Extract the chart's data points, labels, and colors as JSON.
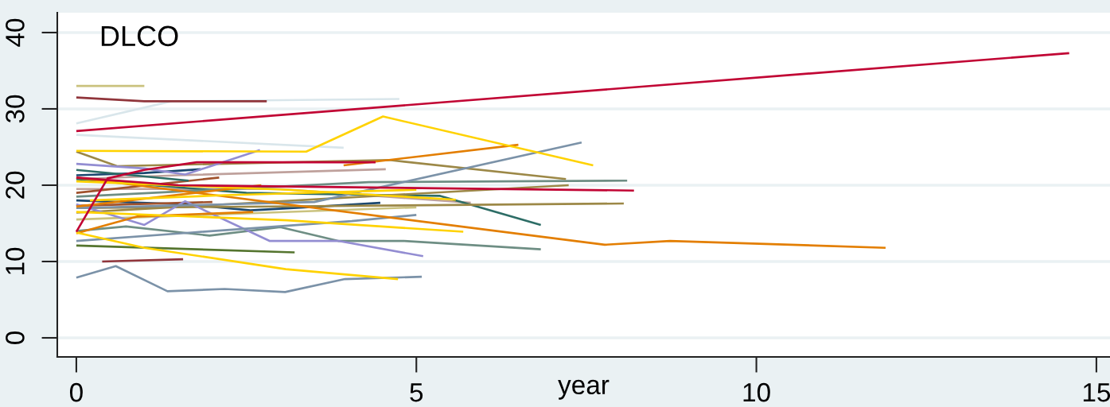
{
  "chart_data": {
    "type": "line",
    "title": "DLCO",
    "xlabel": "year",
    "xlim": [
      -0.28,
      15.2
    ],
    "ylim": [
      -2.5,
      42.6
    ],
    "xticks": [
      0,
      5,
      10,
      15
    ],
    "yticks": [
      0,
      10,
      20,
      30,
      40
    ],
    "grid": "y",
    "series": [
      {
        "color": "#bfa19c",
        "x": [
          0,
          1.5,
          4.55
        ],
        "values": [
          20.8,
          21.3,
          22.1
        ]
      },
      {
        "color": "#bfa19c",
        "x": [
          0,
          3.0,
          5.8
        ],
        "values": [
          19.5,
          19.5,
          17.7
        ]
      },
      {
        "color": "#d9e6eb",
        "x": [
          0,
          1.4,
          4.75
        ],
        "values": [
          28.1,
          31.0,
          31.3
        ]
      },
      {
        "color": "#d9e6eb",
        "x": [
          0,
          3.93
        ],
        "values": [
          26.6,
          24.9
        ]
      },
      {
        "color": "#cac27e",
        "x": [
          0,
          1.0
        ],
        "values": [
          33.0,
          33.0
        ]
      },
      {
        "color": "#cac27e",
        "x": [
          0,
          5.0
        ],
        "values": [
          15.5,
          17.1
        ]
      },
      {
        "color": "#90353b",
        "x": [
          0,
          1.0,
          2.8
        ],
        "values": [
          31.5,
          31.0,
          31.0
        ]
      },
      {
        "color": "#90353b",
        "x": [
          0.38,
          1.57
        ],
        "values": [
          10.0,
          10.3
        ]
      },
      {
        "color": "#1a476f",
        "x": [
          0,
          1.0,
          1.83
        ],
        "values": [
          21.3,
          21.6,
          22.1
        ]
      },
      {
        "color": "#1a476f",
        "x": [
          0,
          1.6,
          2.56,
          3.56,
          4.47
        ],
        "values": [
          18.0,
          17.5,
          16.7,
          17.2,
          17.7
        ]
      },
      {
        "color": "#a0522d",
        "x": [
          0,
          2.1
        ],
        "values": [
          19.0,
          21.0
        ]
      },
      {
        "color": "#a0522d",
        "x": [
          0,
          2.0
        ],
        "values": [
          17.3,
          17.8
        ]
      },
      {
        "color": "#2d6d66",
        "x": [
          0,
          2.5,
          5.35,
          6.83
        ],
        "values": [
          20.8,
          19.0,
          18.6,
          14.8
        ]
      },
      {
        "color": "#2d6d66",
        "x": [
          0,
          1.65
        ],
        "values": [
          22.0,
          20.6
        ]
      },
      {
        "color": "#6e8e84",
        "x": [
          0,
          4.3,
          8.1
        ],
        "values": [
          18.5,
          20.4,
          20.6
        ]
      },
      {
        "color": "#6e8e84",
        "x": [
          0,
          0.73,
          1.96,
          3.0,
          3.85,
          4.82,
          6.83
        ],
        "values": [
          14.0,
          14.6,
          13.4,
          14.5,
          12.7,
          12.7,
          11.6
        ]
      },
      {
        "color": "#9c8847",
        "x": [
          0,
          0.6,
          4.6,
          7.2
        ],
        "values": [
          24.4,
          22.5,
          23.3,
          20.8
        ]
      },
      {
        "color": "#9c8847",
        "x": [
          0,
          7.24
        ],
        "values": [
          16.4,
          20.0
        ]
      },
      {
        "color": "#9c8847",
        "x": [
          0,
          8.05
        ],
        "values": [
          17.0,
          17.6
        ]
      },
      {
        "color": "#938dd2",
        "x": [
          0,
          1.0,
          1.6,
          2.7
        ],
        "values": [
          22.8,
          22.2,
          21.4,
          24.6
        ]
      },
      {
        "color": "#938dd2",
        "x": [
          0,
          1.0,
          1.6,
          2.84,
          3.85,
          5.1
        ],
        "values": [
          17.5,
          14.8,
          17.9,
          12.7,
          12.7,
          10.7
        ]
      },
      {
        "color": "#7b92a8",
        "x": [
          0,
          3.5,
          7.43
        ],
        "values": [
          17.0,
          17.8,
          25.6
        ]
      },
      {
        "color": "#7b92a8",
        "x": [
          0,
          1.7,
          4.05,
          5.0
        ],
        "values": [
          12.7,
          13.8,
          15.3,
          16.1
        ]
      },
      {
        "color": "#7b92a8",
        "x": [
          0,
          0.58,
          1.34,
          2.18,
          3.07,
          3.95,
          5.08
        ],
        "values": [
          7.9,
          9.4,
          6.1,
          6.4,
          6.0,
          7.7,
          8.0
        ]
      },
      {
        "color": "#55752f",
        "x": [
          0,
          3.21
        ],
        "values": [
          12.1,
          11.2
        ]
      },
      {
        "color": "#e37e00",
        "x": [
          0,
          7.77,
          8.73,
          11.9
        ],
        "values": [
          21.0,
          12.2,
          12.7,
          11.8
        ]
      },
      {
        "color": "#e37e00",
        "x": [
          3.93,
          6.5
        ],
        "values": [
          22.6,
          25.3
        ]
      },
      {
        "color": "#e37e00",
        "x": [
          0,
          0.9,
          2.6
        ],
        "values": [
          13.7,
          15.9,
          16.5
        ]
      },
      {
        "color": "#e37e00",
        "x": [
          0,
          2.72
        ],
        "values": [
          17.2,
          20.0
        ]
      },
      {
        "color": "#ffd200",
        "x": [
          0,
          3.38,
          4.51,
          7.6
        ],
        "values": [
          24.5,
          24.4,
          29.0,
          22.6
        ]
      },
      {
        "color": "#ffd200",
        "x": [
          0,
          3.1,
          5.58
        ],
        "values": [
          20.5,
          19.4,
          18.1
        ]
      },
      {
        "color": "#ffd200",
        "x": [
          0,
          3.1,
          5.69
        ],
        "values": [
          16.5,
          15.4,
          13.9
        ]
      },
      {
        "color": "#ffd200",
        "x": [
          0,
          1.0,
          3.08,
          4.73
        ],
        "values": [
          13.8,
          11.8,
          9.0,
          7.7
        ]
      },
      {
        "color": "#ffd200",
        "x": [
          0.2,
          2.2,
          5.0
        ],
        "values": [
          18.0,
          18.7,
          19.4
        ]
      },
      {
        "color": "#c10534",
        "x": [
          0,
          1.5,
          8.2
        ],
        "values": [
          21.0,
          20.0,
          19.3
        ]
      },
      {
        "color": "#c10534",
        "x": [
          0,
          0.46,
          1.0,
          1.77,
          4.4
        ],
        "values": [
          13.9,
          20.9,
          22.0,
          23.0,
          23.0
        ]
      },
      {
        "color": "#c10534",
        "x": [
          0,
          14.6
        ],
        "values": [
          27.1,
          37.3
        ]
      }
    ]
  }
}
